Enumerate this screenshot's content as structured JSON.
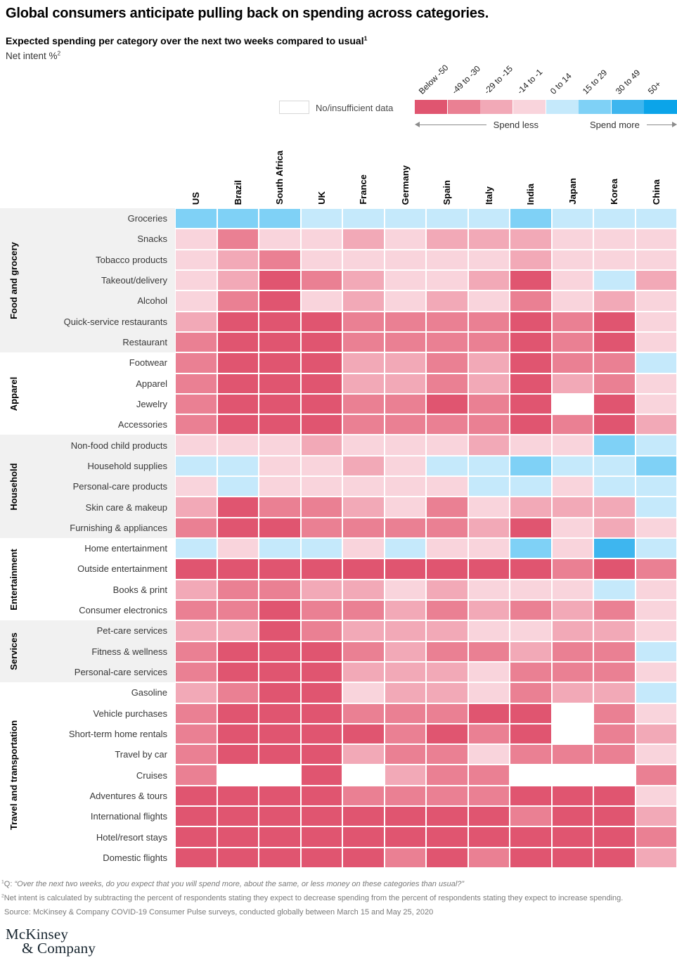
{
  "title": "Global consumers anticipate pulling back on spending across categories.",
  "subtitle": "Expected spending per category over the next two weeks compared to usual",
  "subtitle_sup": "1",
  "unit_label": "Net intent %",
  "unit_sup": "2",
  "legend": {
    "no_data_label": "No/insufficient data",
    "spend_less": "Spend less",
    "spend_more": "Spend more",
    "bins": [
      {
        "label": "Below -50",
        "color": "#e05570"
      },
      {
        "label": "-49 to -30",
        "color": "#ea8093"
      },
      {
        "label": "-29 to -15",
        "color": "#f2a9b7"
      },
      {
        "label": "-14 to -1",
        "color": "#f9d4dc"
      },
      {
        "label": "0 to 14",
        "color": "#c5e9fb"
      },
      {
        "label": "15 to 29",
        "color": "#7fd1f6"
      },
      {
        "label": "30 to 49",
        "color": "#3eb6ef"
      },
      {
        "label": "50+",
        "color": "#0ba4e9"
      }
    ],
    "no_data_color": "#ffffff"
  },
  "chart_data": {
    "type": "heatmap",
    "value_encoding": "bin index 1-8 into legend.bins (1 = Below -50 ... 8 = 50+); 0 = no/insufficient data",
    "columns": [
      "US",
      "Brazil",
      "South Africa",
      "UK",
      "France",
      "Germany",
      "Spain",
      "Italy",
      "India",
      "Japan",
      "Korea",
      "China"
    ],
    "groups": [
      {
        "name": "Food and grocery",
        "rows": [
          {
            "label": "Groceries",
            "bins": [
              6,
              6,
              6,
              5,
              5,
              5,
              5,
              5,
              6,
              5,
              5,
              5
            ]
          },
          {
            "label": "Snacks",
            "bins": [
              4,
              2,
              4,
              4,
              3,
              4,
              3,
              3,
              3,
              4,
              4,
              4
            ]
          },
          {
            "label": "Tobacco products",
            "bins": [
              4,
              3,
              2,
              4,
              4,
              4,
              4,
              4,
              3,
              4,
              4,
              4
            ]
          },
          {
            "label": "Takeout/delivery",
            "bins": [
              4,
              3,
              1,
              2,
              3,
              4,
              4,
              3,
              1,
              4,
              5,
              3
            ]
          },
          {
            "label": "Alcohol",
            "bins": [
              4,
              2,
              1,
              4,
              3,
              4,
              3,
              4,
              2,
              4,
              3,
              4
            ]
          },
          {
            "label": "Quick-service restaurants",
            "bins": [
              3,
              1,
              1,
              1,
              2,
              2,
              2,
              2,
              1,
              2,
              1,
              4
            ]
          },
          {
            "label": "Restaurant",
            "bins": [
              2,
              1,
              1,
              1,
              2,
              2,
              2,
              2,
              1,
              2,
              1,
              4
            ]
          }
        ]
      },
      {
        "name": "Apparel",
        "rows": [
          {
            "label": "Footwear",
            "bins": [
              2,
              1,
              1,
              1,
              3,
              3,
              2,
              3,
              1,
              2,
              2,
              5
            ]
          },
          {
            "label": "Apparel",
            "bins": [
              2,
              1,
              1,
              1,
              3,
              3,
              2,
              3,
              1,
              3,
              2,
              4
            ]
          },
          {
            "label": "Jewelry",
            "bins": [
              2,
              1,
              1,
              1,
              2,
              2,
              1,
              2,
              1,
              0,
              1,
              4
            ]
          },
          {
            "label": "Accessories",
            "bins": [
              2,
              1,
              1,
              1,
              2,
              2,
              2,
              2,
              1,
              2,
              1,
              3
            ]
          }
        ]
      },
      {
        "name": "Household",
        "rows": [
          {
            "label": "Non-food child products",
            "bins": [
              4,
              4,
              4,
              3,
              4,
              4,
              4,
              3,
              4,
              4,
              6,
              5
            ]
          },
          {
            "label": "Household supplies",
            "bins": [
              5,
              5,
              4,
              4,
              3,
              4,
              5,
              5,
              6,
              5,
              5,
              6
            ]
          },
          {
            "label": "Personal-care products",
            "bins": [
              4,
              5,
              4,
              4,
              4,
              4,
              4,
              5,
              5,
              4,
              5,
              5
            ]
          },
          {
            "label": "Skin care & makeup",
            "bins": [
              3,
              1,
              2,
              2,
              3,
              4,
              2,
              4,
              3,
              3,
              3,
              5
            ]
          },
          {
            "label": "Furnishing & appliances",
            "bins": [
              2,
              1,
              1,
              2,
              2,
              2,
              2,
              3,
              1,
              4,
              3,
              4
            ]
          }
        ]
      },
      {
        "name": "Entertainment",
        "rows": [
          {
            "label": "Home entertainment",
            "bins": [
              5,
              4,
              5,
              5,
              4,
              5,
              4,
              4,
              6,
              4,
              7,
              5
            ]
          },
          {
            "label": "Outside entertainment",
            "bins": [
              1,
              1,
              1,
              1,
              1,
              1,
              1,
              1,
              1,
              2,
              1,
              2
            ]
          },
          {
            "label": "Books & print",
            "bins": [
              3,
              2,
              2,
              3,
              3,
              4,
              3,
              4,
              4,
              4,
              5,
              4
            ]
          },
          {
            "label": "Consumer electronics",
            "bins": [
              2,
              2,
              1,
              2,
              2,
              3,
              2,
              3,
              2,
              3,
              2,
              4
            ]
          }
        ]
      },
      {
        "name": "Services",
        "rows": [
          {
            "label": "Pet-care services",
            "bins": [
              3,
              3,
              1,
              2,
              3,
              3,
              3,
              4,
              4,
              3,
              3,
              4
            ]
          },
          {
            "label": "Fitness & wellness",
            "bins": [
              2,
              1,
              1,
              1,
              2,
              3,
              2,
              2,
              3,
              2,
              2,
              5
            ]
          },
          {
            "label": "Personal-care services",
            "bins": [
              2,
              1,
              1,
              1,
              3,
              3,
              3,
              4,
              2,
              2,
              2,
              4
            ]
          }
        ]
      },
      {
        "name": "Travel and transportation",
        "rows": [
          {
            "label": "Gasoline",
            "bins": [
              3,
              2,
              1,
              1,
              4,
              3,
              3,
              4,
              2,
              3,
              3,
              5
            ]
          },
          {
            "label": "Vehicle purchases",
            "bins": [
              2,
              1,
              1,
              1,
              2,
              2,
              2,
              1,
              1,
              0,
              2,
              4
            ]
          },
          {
            "label": "Short-term home rentals",
            "bins": [
              2,
              1,
              1,
              1,
              1,
              2,
              1,
              2,
              1,
              0,
              2,
              3
            ]
          },
          {
            "label": "Travel by car",
            "bins": [
              2,
              1,
              1,
              1,
              3,
              2,
              2,
              4,
              2,
              2,
              2,
              4
            ]
          },
          {
            "label": "Cruises",
            "bins": [
              2,
              0,
              0,
              1,
              0,
              3,
              2,
              2,
              0,
              0,
              0,
              2
            ]
          },
          {
            "label": "Adventures & tours",
            "bins": [
              1,
              1,
              1,
              1,
              2,
              2,
              2,
              2,
              1,
              1,
              1,
              4
            ]
          },
          {
            "label": "International flights",
            "bins": [
              1,
              1,
              1,
              1,
              1,
              1,
              1,
              1,
              2,
              1,
              1,
              3
            ]
          },
          {
            "label": "Hotel/resort stays",
            "bins": [
              1,
              1,
              1,
              1,
              1,
              1,
              1,
              1,
              1,
              1,
              1,
              2
            ]
          },
          {
            "label": "Domestic flights",
            "bins": [
              1,
              1,
              1,
              1,
              1,
              2,
              1,
              2,
              1,
              1,
              1,
              3
            ]
          }
        ]
      }
    ]
  },
  "footnotes": [
    {
      "sup": "1",
      "pre": "Q: ",
      "italic": "“Over the next two weeks, do you expect that you will spend more, about the same, or less money on these categories than usual?”"
    },
    {
      "sup": "2",
      "pre": "Net intent is calculated by subtracting the percent of respondents stating they expect to decrease spending from the percent of respondents stating they expect to increase spending.",
      "italic": ""
    }
  ],
  "source": "Source: McKinsey & Company COVID-19 Consumer Pulse surveys, conducted globally between March 15 and May 25, 2020",
  "logo": {
    "line1": "McKinsey",
    "line2": "& Company"
  }
}
